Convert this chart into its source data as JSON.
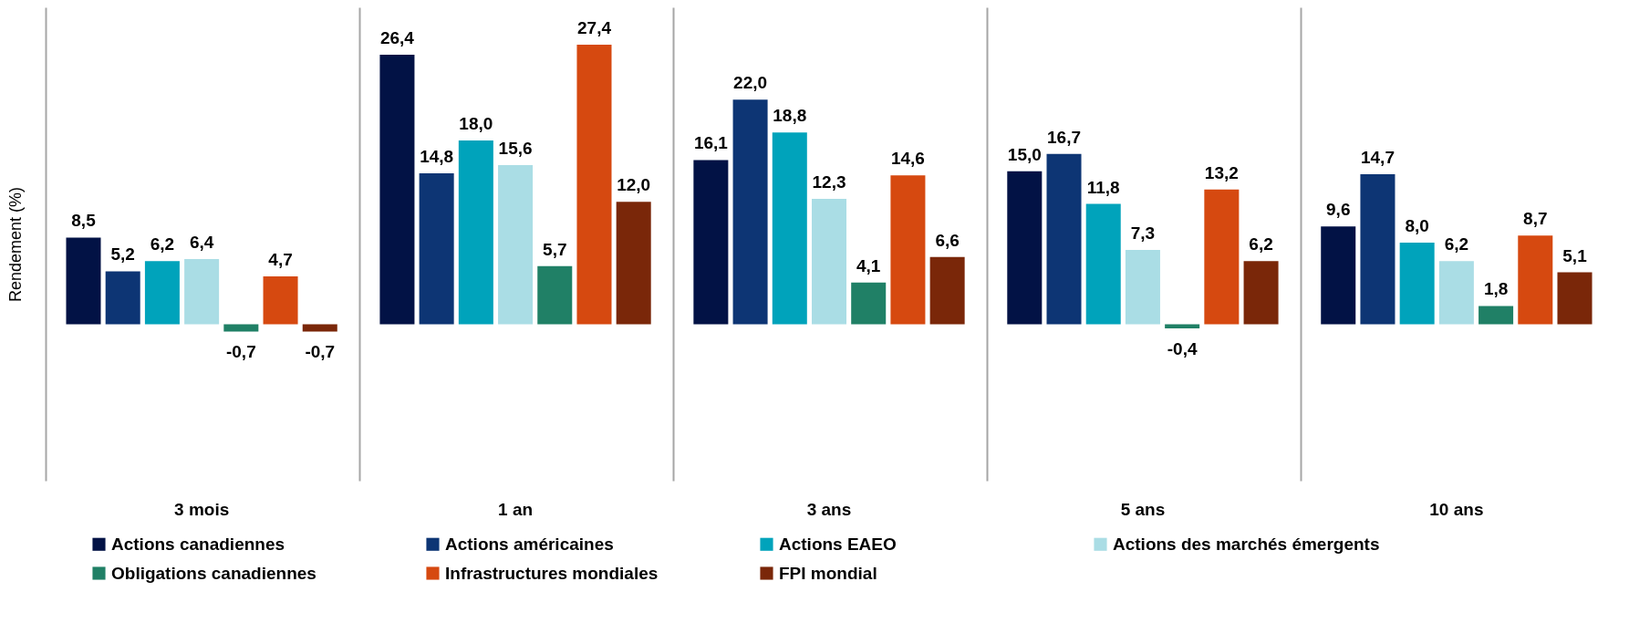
{
  "chart_data": {
    "type": "bar",
    "ylabel": "Rendement (%)",
    "categories": [
      "3 mois",
      "1 an",
      "3 ans",
      "5 ans",
      "10 ans"
    ],
    "series": [
      {
        "name": "Actions canadiennes",
        "color": "#021245",
        "values": [
          8.5,
          26.4,
          16.1,
          15.0,
          9.6
        ],
        "value_labels": [
          "8,5",
          "26,4",
          "16,1",
          "15,0",
          "9,6"
        ]
      },
      {
        "name": "Actions américaines",
        "color": "#0d3574",
        "values": [
          5.2,
          14.8,
          22.0,
          16.7,
          14.7
        ],
        "value_labels": [
          "5,2",
          "14,8",
          "22,0",
          "16,7",
          "14,7"
        ]
      },
      {
        "name": "Actions EAEO",
        "color": "#00a3bb",
        "values": [
          6.2,
          18.0,
          18.8,
          11.8,
          8.0
        ],
        "value_labels": [
          "6,2",
          "18,0",
          "18,8",
          "11,8",
          "8,0"
        ]
      },
      {
        "name": "Actions des marchés émergents",
        "color": "#aadde5",
        "values": [
          6.4,
          15.6,
          12.3,
          7.3,
          6.2
        ],
        "value_labels": [
          "6,4",
          "15,6",
          "12,3",
          "7,3",
          "6,2"
        ]
      },
      {
        "name": "Obligations canadiennes",
        "color": "#208066",
        "values": [
          -0.7,
          5.7,
          4.1,
          -0.4,
          1.8
        ],
        "value_labels": [
          "-0,7",
          "5,7",
          "4,1",
          "-0,4",
          "1,8"
        ]
      },
      {
        "name": "Infrastructures mondiales",
        "color": "#d64910",
        "values": [
          4.7,
          27.4,
          14.6,
          13.2,
          8.7
        ],
        "value_labels": [
          "4,7",
          "27,4",
          "14,6",
          "13,2",
          "8,7"
        ]
      },
      {
        "name": "FPI mondial",
        "color": "#7a2709",
        "values": [
          -0.7,
          12.0,
          6.6,
          6.2,
          5.1
        ],
        "value_labels": [
          "-0,7",
          "12,0",
          "6,6",
          "6,2",
          "5,1"
        ]
      }
    ],
    "grid": "x",
    "legend": "bottom",
    "tick_labels": "x"
  }
}
